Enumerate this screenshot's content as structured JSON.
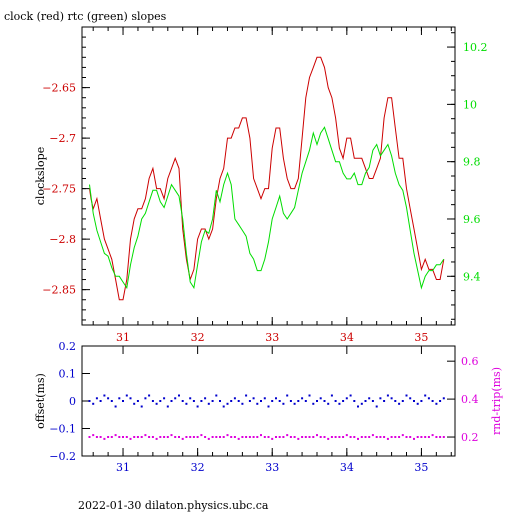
{
  "title": "clock (red) rtc (green) slopes",
  "footer": "2022-01-30  dilaton.physics.ubc.ca",
  "colors": {
    "clock": "#cc0000",
    "rtc": "#00dd00",
    "offset": "#0000cc",
    "rndtrip": "#dd00dd",
    "axis": "#000000"
  },
  "chart_data": [
    {
      "type": "line",
      "title": "clock (red) rtc (green) slopes",
      "ylabel": "clockslope",
      "y2label": "",
      "xlim": [
        30.45,
        35.45
      ],
      "ylim": [
        -2.885,
        -2.59
      ],
      "y2lim": [
        9.23,
        10.27
      ],
      "xticks": [
        31,
        32,
        33,
        34,
        35
      ],
      "yticks": [
        -2.85,
        -2.8,
        -2.75,
        -2.7,
        -2.65
      ],
      "y2ticks": [
        9.4,
        9.6,
        9.8,
        10,
        10.2
      ],
      "series": [
        {
          "name": "clock (red)",
          "axis": "left",
          "x": [
            30.55,
            30.57,
            30.6,
            30.65,
            30.7,
            30.75,
            30.8,
            30.85,
            30.9,
            30.95,
            31.0,
            31.05,
            31.1,
            31.15,
            31.2,
            31.25,
            31.3,
            31.35,
            31.4,
            31.45,
            31.5,
            31.55,
            31.6,
            31.65,
            31.7,
            31.75,
            31.8,
            31.85,
            31.9,
            31.95,
            32.0,
            32.05,
            32.1,
            32.15,
            32.2,
            32.25,
            32.3,
            32.35,
            32.4,
            32.45,
            32.5,
            32.55,
            32.6,
            32.65,
            32.7,
            32.75,
            32.8,
            32.85,
            32.9,
            32.95,
            33.0,
            33.05,
            33.1,
            33.15,
            33.2,
            33.25,
            33.3,
            33.35,
            33.4,
            33.45,
            33.5,
            33.55,
            33.6,
            33.65,
            33.7,
            33.75,
            33.8,
            33.85,
            33.9,
            33.95,
            34.0,
            34.05,
            34.1,
            34.15,
            34.2,
            34.25,
            34.3,
            34.35,
            34.4,
            34.45,
            34.5,
            34.55,
            34.6,
            34.65,
            34.7,
            34.75,
            34.8,
            34.85,
            34.9,
            34.95,
            35.0,
            35.05,
            35.1,
            35.15,
            35.2,
            35.25,
            35.3
          ],
          "values": [
            -2.75,
            -2.76,
            -2.77,
            -2.76,
            -2.78,
            -2.8,
            -2.81,
            -2.82,
            -2.84,
            -2.86,
            -2.86,
            -2.84,
            -2.8,
            -2.78,
            -2.77,
            -2.77,
            -2.76,
            -2.74,
            -2.73,
            -2.75,
            -2.75,
            -2.76,
            -2.74,
            -2.73,
            -2.72,
            -2.73,
            -2.79,
            -2.82,
            -2.84,
            -2.83,
            -2.8,
            -2.79,
            -2.79,
            -2.8,
            -2.79,
            -2.76,
            -2.74,
            -2.73,
            -2.7,
            -2.7,
            -2.69,
            -2.69,
            -2.68,
            -2.68,
            -2.7,
            -2.74,
            -2.75,
            -2.76,
            -2.75,
            -2.75,
            -2.71,
            -2.69,
            -2.69,
            -2.72,
            -2.74,
            -2.75,
            -2.75,
            -2.74,
            -2.7,
            -2.66,
            -2.64,
            -2.63,
            -2.62,
            -2.62,
            -2.63,
            -2.65,
            -2.66,
            -2.68,
            -2.71,
            -2.72,
            -2.7,
            -2.7,
            -2.72,
            -2.72,
            -2.72,
            -2.73,
            -2.74,
            -2.74,
            -2.73,
            -2.72,
            -2.68,
            -2.66,
            -2.66,
            -2.69,
            -2.72,
            -2.72,
            -2.75,
            -2.77,
            -2.79,
            -2.81,
            -2.83,
            -2.82,
            -2.83,
            -2.83,
            -2.84,
            -2.84,
            -2.82
          ]
        },
        {
          "name": "rtc (green)",
          "axis": "right",
          "x": [
            30.55,
            30.57,
            30.6,
            30.65,
            30.7,
            30.75,
            30.8,
            30.85,
            30.9,
            30.95,
            31.0,
            31.05,
            31.1,
            31.15,
            31.2,
            31.25,
            31.3,
            31.35,
            31.4,
            31.45,
            31.5,
            31.55,
            31.6,
            31.65,
            31.7,
            31.75,
            31.8,
            31.85,
            31.9,
            31.95,
            32.0,
            32.05,
            32.1,
            32.15,
            32.2,
            32.25,
            32.3,
            32.35,
            32.4,
            32.45,
            32.5,
            32.55,
            32.6,
            32.65,
            32.7,
            32.75,
            32.8,
            32.85,
            32.9,
            32.95,
            33.0,
            33.05,
            33.1,
            33.15,
            33.2,
            33.25,
            33.3,
            33.35,
            33.4,
            33.45,
            33.5,
            33.55,
            33.6,
            33.65,
            33.7,
            33.75,
            33.8,
            33.85,
            33.9,
            33.95,
            34.0,
            34.05,
            34.1,
            34.15,
            34.2,
            34.25,
            34.3,
            34.35,
            34.4,
            34.45,
            34.5,
            34.55,
            34.6,
            34.65,
            34.7,
            34.75,
            34.8,
            34.85,
            34.9,
            34.95,
            35.0,
            35.05,
            35.1,
            35.15,
            35.2,
            35.25,
            35.3
          ],
          "values": [
            9.72,
            9.68,
            9.62,
            9.56,
            9.52,
            9.48,
            9.47,
            9.43,
            9.4,
            9.4,
            9.38,
            9.36,
            9.44,
            9.5,
            9.54,
            9.6,
            9.62,
            9.66,
            9.7,
            9.7,
            9.66,
            9.64,
            9.68,
            9.72,
            9.7,
            9.68,
            9.6,
            9.48,
            9.38,
            9.36,
            9.44,
            9.52,
            9.56,
            9.55,
            9.6,
            9.7,
            9.66,
            9.72,
            9.76,
            9.72,
            9.6,
            9.58,
            9.56,
            9.54,
            9.48,
            9.46,
            9.42,
            9.42,
            9.46,
            9.52,
            9.6,
            9.64,
            9.68,
            9.62,
            9.6,
            9.62,
            9.64,
            9.7,
            9.76,
            9.8,
            9.84,
            9.9,
            9.86,
            9.9,
            9.92,
            9.88,
            9.84,
            9.8,
            9.8,
            9.76,
            9.74,
            9.74,
            9.76,
            9.72,
            9.72,
            9.76,
            9.78,
            9.84,
            9.86,
            9.82,
            9.84,
            9.86,
            9.82,
            9.76,
            9.72,
            9.7,
            9.64,
            9.56,
            9.48,
            9.42,
            9.36,
            9.4,
            9.42,
            9.42,
            9.44,
            9.44,
            9.46
          ]
        }
      ]
    },
    {
      "type": "scatter",
      "ylabel": "offset(ms)",
      "y2label": "rnd-trip(ms)",
      "xlim": [
        30.45,
        35.45
      ],
      "ylim": [
        -0.2,
        0.2
      ],
      "y2lim": [
        0.1,
        0.68
      ],
      "xticks": [
        31,
        32,
        33,
        34,
        35
      ],
      "yticks": [
        -0.2,
        -0.1,
        0,
        0.1,
        0.2
      ],
      "y2ticks": [
        0.2,
        0.4,
        0.6
      ],
      "series": [
        {
          "name": "offset",
          "axis": "left",
          "x": [
            30.55,
            30.6,
            30.65,
            30.7,
            30.75,
            30.8,
            30.85,
            30.9,
            30.95,
            31.0,
            31.05,
            31.1,
            31.15,
            31.2,
            31.25,
            31.3,
            31.35,
            31.4,
            31.45,
            31.5,
            31.55,
            31.6,
            31.65,
            31.7,
            31.75,
            31.8,
            31.85,
            31.9,
            31.95,
            32.0,
            32.05,
            32.1,
            32.15,
            32.2,
            32.25,
            32.3,
            32.35,
            32.4,
            32.45,
            32.5,
            32.55,
            32.6,
            32.65,
            32.7,
            32.75,
            32.8,
            32.85,
            32.9,
            32.95,
            33.0,
            33.05,
            33.1,
            33.15,
            33.2,
            33.25,
            33.3,
            33.35,
            33.4,
            33.45,
            33.5,
            33.55,
            33.6,
            33.65,
            33.7,
            33.75,
            33.8,
            33.85,
            33.9,
            33.95,
            34.0,
            34.05,
            34.1,
            34.15,
            34.2,
            34.25,
            34.3,
            34.35,
            34.4,
            34.45,
            34.5,
            34.55,
            34.6,
            34.65,
            34.7,
            34.75,
            34.8,
            34.85,
            34.9,
            34.95,
            35.0,
            35.05,
            35.1,
            35.15,
            35.2,
            35.25,
            35.3
          ],
          "values": [
            0.0,
            -0.01,
            0.01,
            0.0,
            0.02,
            0.01,
            0.0,
            -0.02,
            0.01,
            0.0,
            0.02,
            0.01,
            -0.01,
            0.0,
            -0.02,
            0.01,
            0.02,
            0.0,
            -0.01,
            0.0,
            0.01,
            -0.02,
            0.0,
            0.01,
            0.02,
            0.0,
            -0.01,
            0.01,
            0.0,
            -0.02,
            0.0,
            0.01,
            -0.01,
            0.0,
            0.02,
            0.0,
            -0.02,
            -0.01,
            0.0,
            0.01,
            0.0,
            -0.01,
            0.02,
            0.0,
            0.01,
            -0.01,
            0.0,
            0.01,
            -0.02,
            0.0,
            0.01,
            0.0,
            -0.01,
            0.02,
            0.0,
            -0.01,
            0.0,
            0.01,
            0.0,
            0.02,
            -0.01,
            0.0,
            0.01,
            0.0,
            -0.01,
            0.02,
            0.0,
            -0.01,
            0.0,
            0.01,
            0.02,
            0.0,
            -0.02,
            -0.01,
            0.0,
            0.01,
            0.0,
            -0.02,
            0.01,
            0.0,
            0.02,
            0.01,
            0.0,
            -0.01,
            0.0,
            0.02,
            0.01,
            0.0,
            -0.01,
            0.0,
            0.02,
            0.01,
            0.0,
            -0.01,
            0.0,
            0.01
          ]
        },
        {
          "name": "rnd-trip",
          "axis": "right",
          "x": [
            30.55,
            30.6,
            30.65,
            30.7,
            30.75,
            30.8,
            30.85,
            30.9,
            30.95,
            31.0,
            31.05,
            31.1,
            31.15,
            31.2,
            31.25,
            31.3,
            31.35,
            31.4,
            31.45,
            31.5,
            31.55,
            31.6,
            31.65,
            31.7,
            31.75,
            31.8,
            31.85,
            31.9,
            31.95,
            32.0,
            32.05,
            32.1,
            32.15,
            32.2,
            32.25,
            32.3,
            32.35,
            32.4,
            32.45,
            32.5,
            32.55,
            32.6,
            32.65,
            32.7,
            32.75,
            32.8,
            32.85,
            32.9,
            32.95,
            33.0,
            33.05,
            33.1,
            33.15,
            33.2,
            33.25,
            33.3,
            33.35,
            33.4,
            33.45,
            33.5,
            33.55,
            33.6,
            33.65,
            33.7,
            33.75,
            33.8,
            33.85,
            33.9,
            33.95,
            34.0,
            34.05,
            34.1,
            34.15,
            34.2,
            34.25,
            34.3,
            34.35,
            34.4,
            34.45,
            34.5,
            34.55,
            34.6,
            34.65,
            34.7,
            34.75,
            34.8,
            34.85,
            34.9,
            34.95,
            35.0,
            35.05,
            35.1,
            35.15,
            35.2,
            35.25,
            35.3
          ],
          "values": [
            0.2,
            0.21,
            0.2,
            0.2,
            0.19,
            0.2,
            0.2,
            0.21,
            0.2,
            0.2,
            0.2,
            0.19,
            0.2,
            0.2,
            0.2,
            0.21,
            0.2,
            0.2,
            0.19,
            0.2,
            0.2,
            0.2,
            0.21,
            0.2,
            0.2,
            0.19,
            0.2,
            0.2,
            0.2,
            0.2,
            0.21,
            0.2,
            0.19,
            0.2,
            0.2,
            0.2,
            0.2,
            0.21,
            0.2,
            0.2,
            0.19,
            0.2,
            0.2,
            0.2,
            0.2,
            0.2,
            0.21,
            0.2,
            0.2,
            0.19,
            0.2,
            0.2,
            0.2,
            0.21,
            0.2,
            0.2,
            0.19,
            0.2,
            0.2,
            0.2,
            0.2,
            0.21,
            0.2,
            0.2,
            0.19,
            0.2,
            0.2,
            0.2,
            0.2,
            0.21,
            0.2,
            0.2,
            0.19,
            0.2,
            0.2,
            0.2,
            0.21,
            0.2,
            0.2,
            0.2,
            0.19,
            0.2,
            0.2,
            0.2,
            0.21,
            0.2,
            0.2,
            0.19,
            0.2,
            0.2,
            0.2,
            0.2,
            0.21,
            0.2,
            0.2,
            0.2
          ]
        }
      ]
    }
  ]
}
